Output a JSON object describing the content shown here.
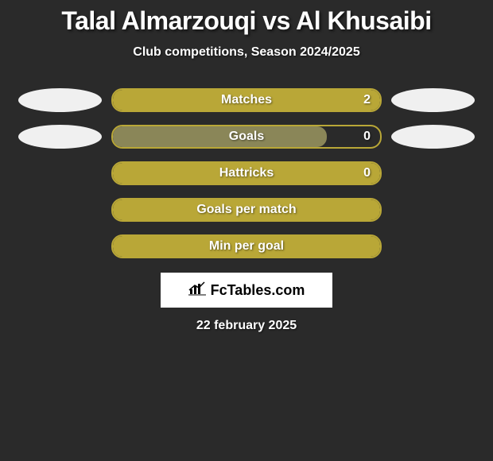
{
  "colors": {
    "background": "#2a2a2a",
    "bar_border": "#b9a737",
    "bar_fill_full": "#b9a737",
    "bar_fill_partial": "#8a8658",
    "text": "#ffffff",
    "logo_bg": "#ffffff",
    "logo_text": "#000000"
  },
  "header": {
    "title": "Talal Almarzouqi vs Al Khusaibi",
    "subtitle": "Club competitions, Season 2024/2025"
  },
  "stats": [
    {
      "label": "Matches",
      "value": "2",
      "has_value": true,
      "fill_pct": 100,
      "left_avatar": true,
      "right_avatar": true,
      "fill_color": "#b9a737"
    },
    {
      "label": "Goals",
      "value": "0",
      "has_value": true,
      "fill_pct": 80,
      "left_avatar": true,
      "right_avatar": true,
      "fill_color": "#8a8658"
    },
    {
      "label": "Hattricks",
      "value": "0",
      "has_value": true,
      "fill_pct": 100,
      "left_avatar": false,
      "right_avatar": false,
      "fill_color": "#b9a737"
    },
    {
      "label": "Goals per match",
      "value": "",
      "has_value": false,
      "fill_pct": 100,
      "left_avatar": false,
      "right_avatar": false,
      "fill_color": "#b9a737"
    },
    {
      "label": "Min per goal",
      "value": "",
      "has_value": false,
      "fill_pct": 100,
      "left_avatar": false,
      "right_avatar": false,
      "fill_color": "#b9a737"
    }
  ],
  "footer": {
    "logo_text": "FcTables.com",
    "date": "22 february 2025"
  }
}
